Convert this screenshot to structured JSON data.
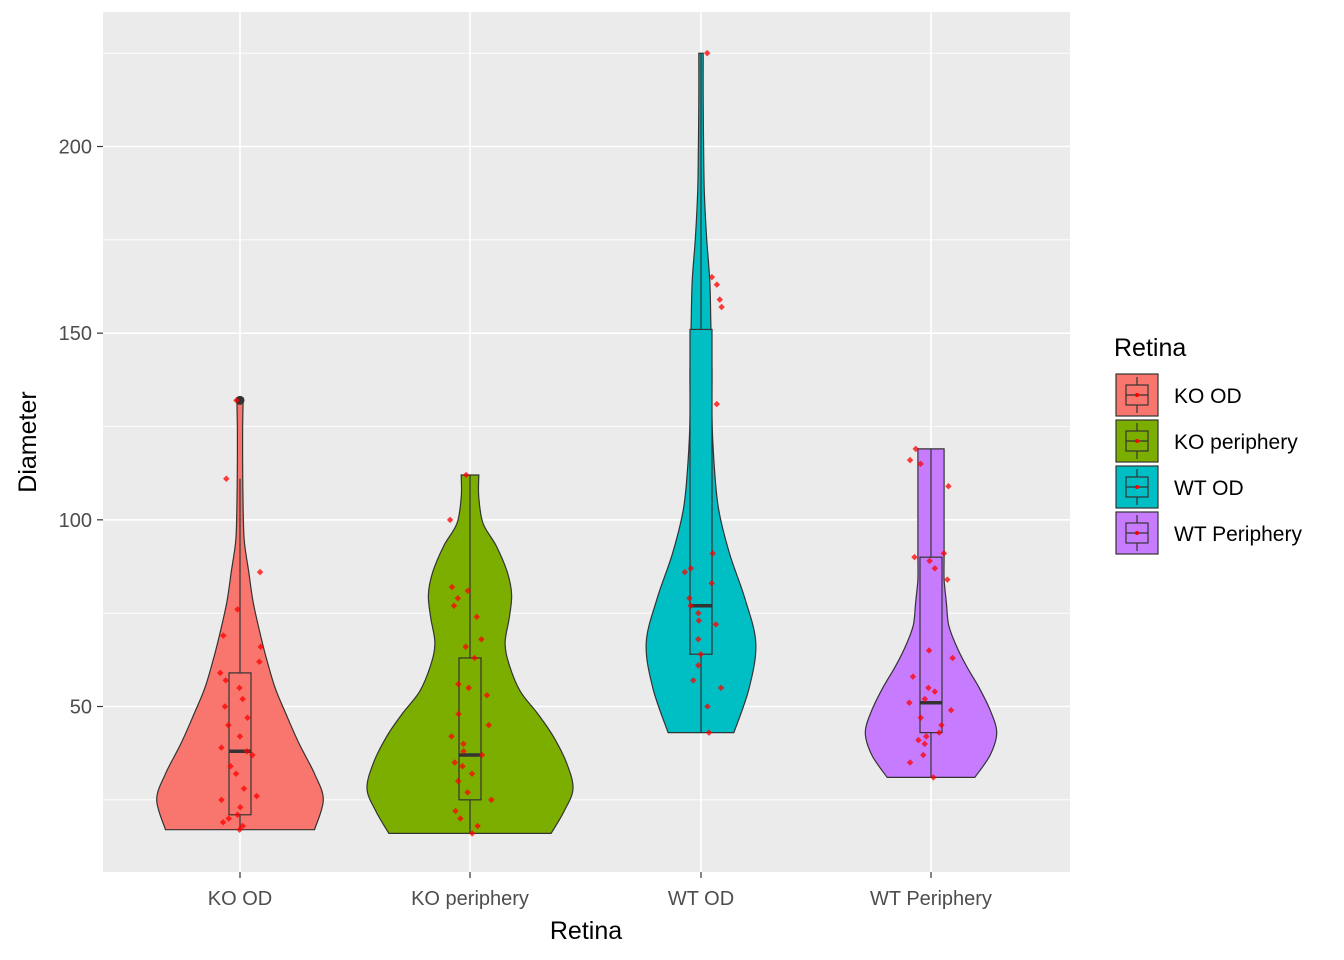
{
  "chart_data": {
    "type": "violin",
    "title": "",
    "xlabel": "Retina",
    "ylabel": "Diameter",
    "ylim": [
      8,
      232
    ],
    "yticks": [
      50,
      100,
      150,
      200
    ],
    "grid": true,
    "legend_placement": "right",
    "legend_title": "Retina",
    "categories": [
      "KO OD",
      "KO periphery",
      "WT OD",
      "WT Periphery"
    ],
    "series": [
      {
        "name": "KO OD",
        "color": "#F8766D",
        "min": 17,
        "max": 132,
        "box": {
          "q1": 21,
          "median": 38,
          "q3": 59,
          "whisker_low": 17,
          "whisker_high": 111
        },
        "outliers": [
          132
        ],
        "violin": [
          [
            17,
            0.34
          ],
          [
            25,
            0.38
          ],
          [
            32,
            0.34
          ],
          [
            40,
            0.27
          ],
          [
            48,
            0.21
          ],
          [
            55,
            0.16
          ],
          [
            63,
            0.12
          ],
          [
            70,
            0.09
          ],
          [
            78,
            0.06
          ],
          [
            86,
            0.04
          ],
          [
            94,
            0.02
          ],
          [
            101,
            0.015
          ],
          [
            109,
            0.013
          ],
          [
            117,
            0.012
          ],
          [
            124,
            0.012
          ],
          [
            132,
            0.014
          ]
        ],
        "points": [
          17,
          18,
          19,
          20,
          21,
          23,
          25,
          26,
          28,
          32,
          34,
          37,
          38,
          39,
          42,
          45,
          47,
          50,
          52,
          55,
          57,
          59,
          62,
          66,
          69,
          76,
          86,
          111,
          132
        ]
      },
      {
        "name": "KO periphery",
        "color": "#7CAE00",
        "min": 16,
        "max": 112,
        "box": {
          "q1": 25,
          "median": 37,
          "q3": 63,
          "whisker_low": 16,
          "whisker_high": 112
        },
        "outliers": [],
        "violin": [
          [
            16,
            0.37
          ],
          [
            22,
            0.43
          ],
          [
            28,
            0.47
          ],
          [
            35,
            0.44
          ],
          [
            42,
            0.38
          ],
          [
            48,
            0.31
          ],
          [
            54,
            0.23
          ],
          [
            61,
            0.18
          ],
          [
            67,
            0.16
          ],
          [
            74,
            0.18
          ],
          [
            80,
            0.19
          ],
          [
            86,
            0.17
          ],
          [
            93,
            0.12
          ],
          [
            99,
            0.06
          ],
          [
            106,
            0.04
          ],
          [
            112,
            0.04
          ]
        ],
        "points": [
          16,
          18,
          20,
          22,
          25,
          27,
          30,
          32,
          34,
          35,
          37,
          38,
          40,
          42,
          45,
          48,
          53,
          55,
          56,
          63,
          66,
          68,
          74,
          77,
          79,
          81,
          82,
          100,
          112
        ]
      },
      {
        "name": "WT OD",
        "color": "#00BFC4",
        "min": 43,
        "max": 225,
        "box": {
          "q1": 64,
          "median": 77,
          "q3": 151,
          "whisker_low": 43,
          "whisker_high": 225
        },
        "outliers": [],
        "violin": [
          [
            43,
            0.15
          ],
          [
            55,
            0.22
          ],
          [
            67,
            0.25
          ],
          [
            79,
            0.2
          ],
          [
            91,
            0.13
          ],
          [
            103,
            0.08
          ],
          [
            115,
            0.06
          ],
          [
            127,
            0.05
          ],
          [
            140,
            0.05
          ],
          [
            152,
            0.045
          ],
          [
            164,
            0.04
          ],
          [
            176,
            0.025
          ],
          [
            188,
            0.015
          ],
          [
            200,
            0.012
          ],
          [
            212,
            0.01
          ],
          [
            225,
            0.01
          ]
        ],
        "points": [
          43,
          50,
          55,
          57,
          61,
          64,
          68,
          72,
          73,
          75,
          77,
          79,
          83,
          86,
          87,
          91,
          131,
          157,
          159,
          163,
          165,
          225
        ]
      },
      {
        "name": "WT Periphery",
        "color": "#C77CFF",
        "min": 31,
        "max": 119,
        "box": {
          "q1": 43,
          "median": 51,
          "q3": 90,
          "whisker_low": 31,
          "whisker_high": 119
        },
        "outliers": [],
        "violin": [
          [
            31,
            0.2
          ],
          [
            37,
            0.27
          ],
          [
            43,
            0.3
          ],
          [
            49,
            0.27
          ],
          [
            55,
            0.22
          ],
          [
            61,
            0.16
          ],
          [
            67,
            0.11
          ],
          [
            72,
            0.08
          ],
          [
            78,
            0.07
          ],
          [
            84,
            0.06
          ],
          [
            90,
            0.06
          ],
          [
            96,
            0.06
          ],
          [
            101,
            0.06
          ],
          [
            107,
            0.06
          ],
          [
            113,
            0.06
          ],
          [
            119,
            0.06
          ]
        ],
        "points": [
          31,
          35,
          37,
          40,
          41,
          42,
          43,
          45,
          47,
          49,
          51,
          52,
          54,
          55,
          58,
          63,
          65,
          84,
          87,
          89,
          90,
          91,
          109,
          115,
          116,
          119
        ]
      }
    ]
  }
}
